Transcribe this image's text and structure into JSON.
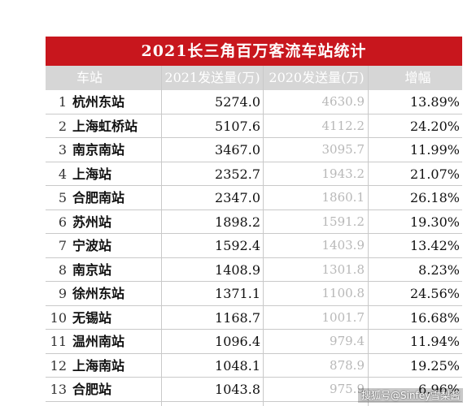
{
  "title": "2021长三角百万客流车站统计",
  "headers": {
    "station": "车站",
    "sent_2021": "2021发送量(万)",
    "sent_2020": "2020发送量(万)",
    "growth": "增幅"
  },
  "rows": [
    {
      "rank": "1",
      "name": "杭州东站",
      "v2021": "5274.0",
      "v2020": "4630.9",
      "growth": "13.89%"
    },
    {
      "rank": "2",
      "name": "上海虹桥站",
      "v2021": "5107.6",
      "v2020": "4112.2",
      "growth": "24.20%"
    },
    {
      "rank": "3",
      "name": "南京南站",
      "v2021": "3467.0",
      "v2020": "3095.7",
      "growth": "11.99%"
    },
    {
      "rank": "4",
      "name": "上海站",
      "v2021": "2352.7",
      "v2020": "1943.2",
      "growth": "21.07%"
    },
    {
      "rank": "5",
      "name": "合肥南站",
      "v2021": "2347.0",
      "v2020": "1860.1",
      "growth": "26.18%"
    },
    {
      "rank": "6",
      "name": "苏州站",
      "v2021": "1898.2",
      "v2020": "1591.2",
      "growth": "19.30%"
    },
    {
      "rank": "7",
      "name": "宁波站",
      "v2021": "1592.4",
      "v2020": "1403.9",
      "growth": "13.42%"
    },
    {
      "rank": "8",
      "name": "南京站",
      "v2021": "1408.9",
      "v2020": "1301.8",
      "growth": "8.23%"
    },
    {
      "rank": "9",
      "name": "徐州东站",
      "v2021": "1371.1",
      "v2020": "1100.8",
      "growth": "24.56%"
    },
    {
      "rank": "10",
      "name": "无锡站",
      "v2021": "1168.7",
      "v2020": "1001.7",
      "growth": "16.68%"
    },
    {
      "rank": "11",
      "name": "温州南站",
      "v2021": "1096.4",
      "v2020": "979.4",
      "growth": "11.94%"
    },
    {
      "rank": "12",
      "name": "上海南站",
      "v2021": "1048.1",
      "v2020": "878.9",
      "growth": "19.25%"
    },
    {
      "rank": "13",
      "name": "合肥站",
      "v2021": "1043.8",
      "v2020": "975.9",
      "growth": "6.96%"
    }
  ],
  "watermark": "搜狐号@Sinfey雪梨酱",
  "colors": {
    "title_bg": "#c8161d",
    "header_bg": "#d6d6d6",
    "prior_year_text": "#b8b8b8"
  }
}
